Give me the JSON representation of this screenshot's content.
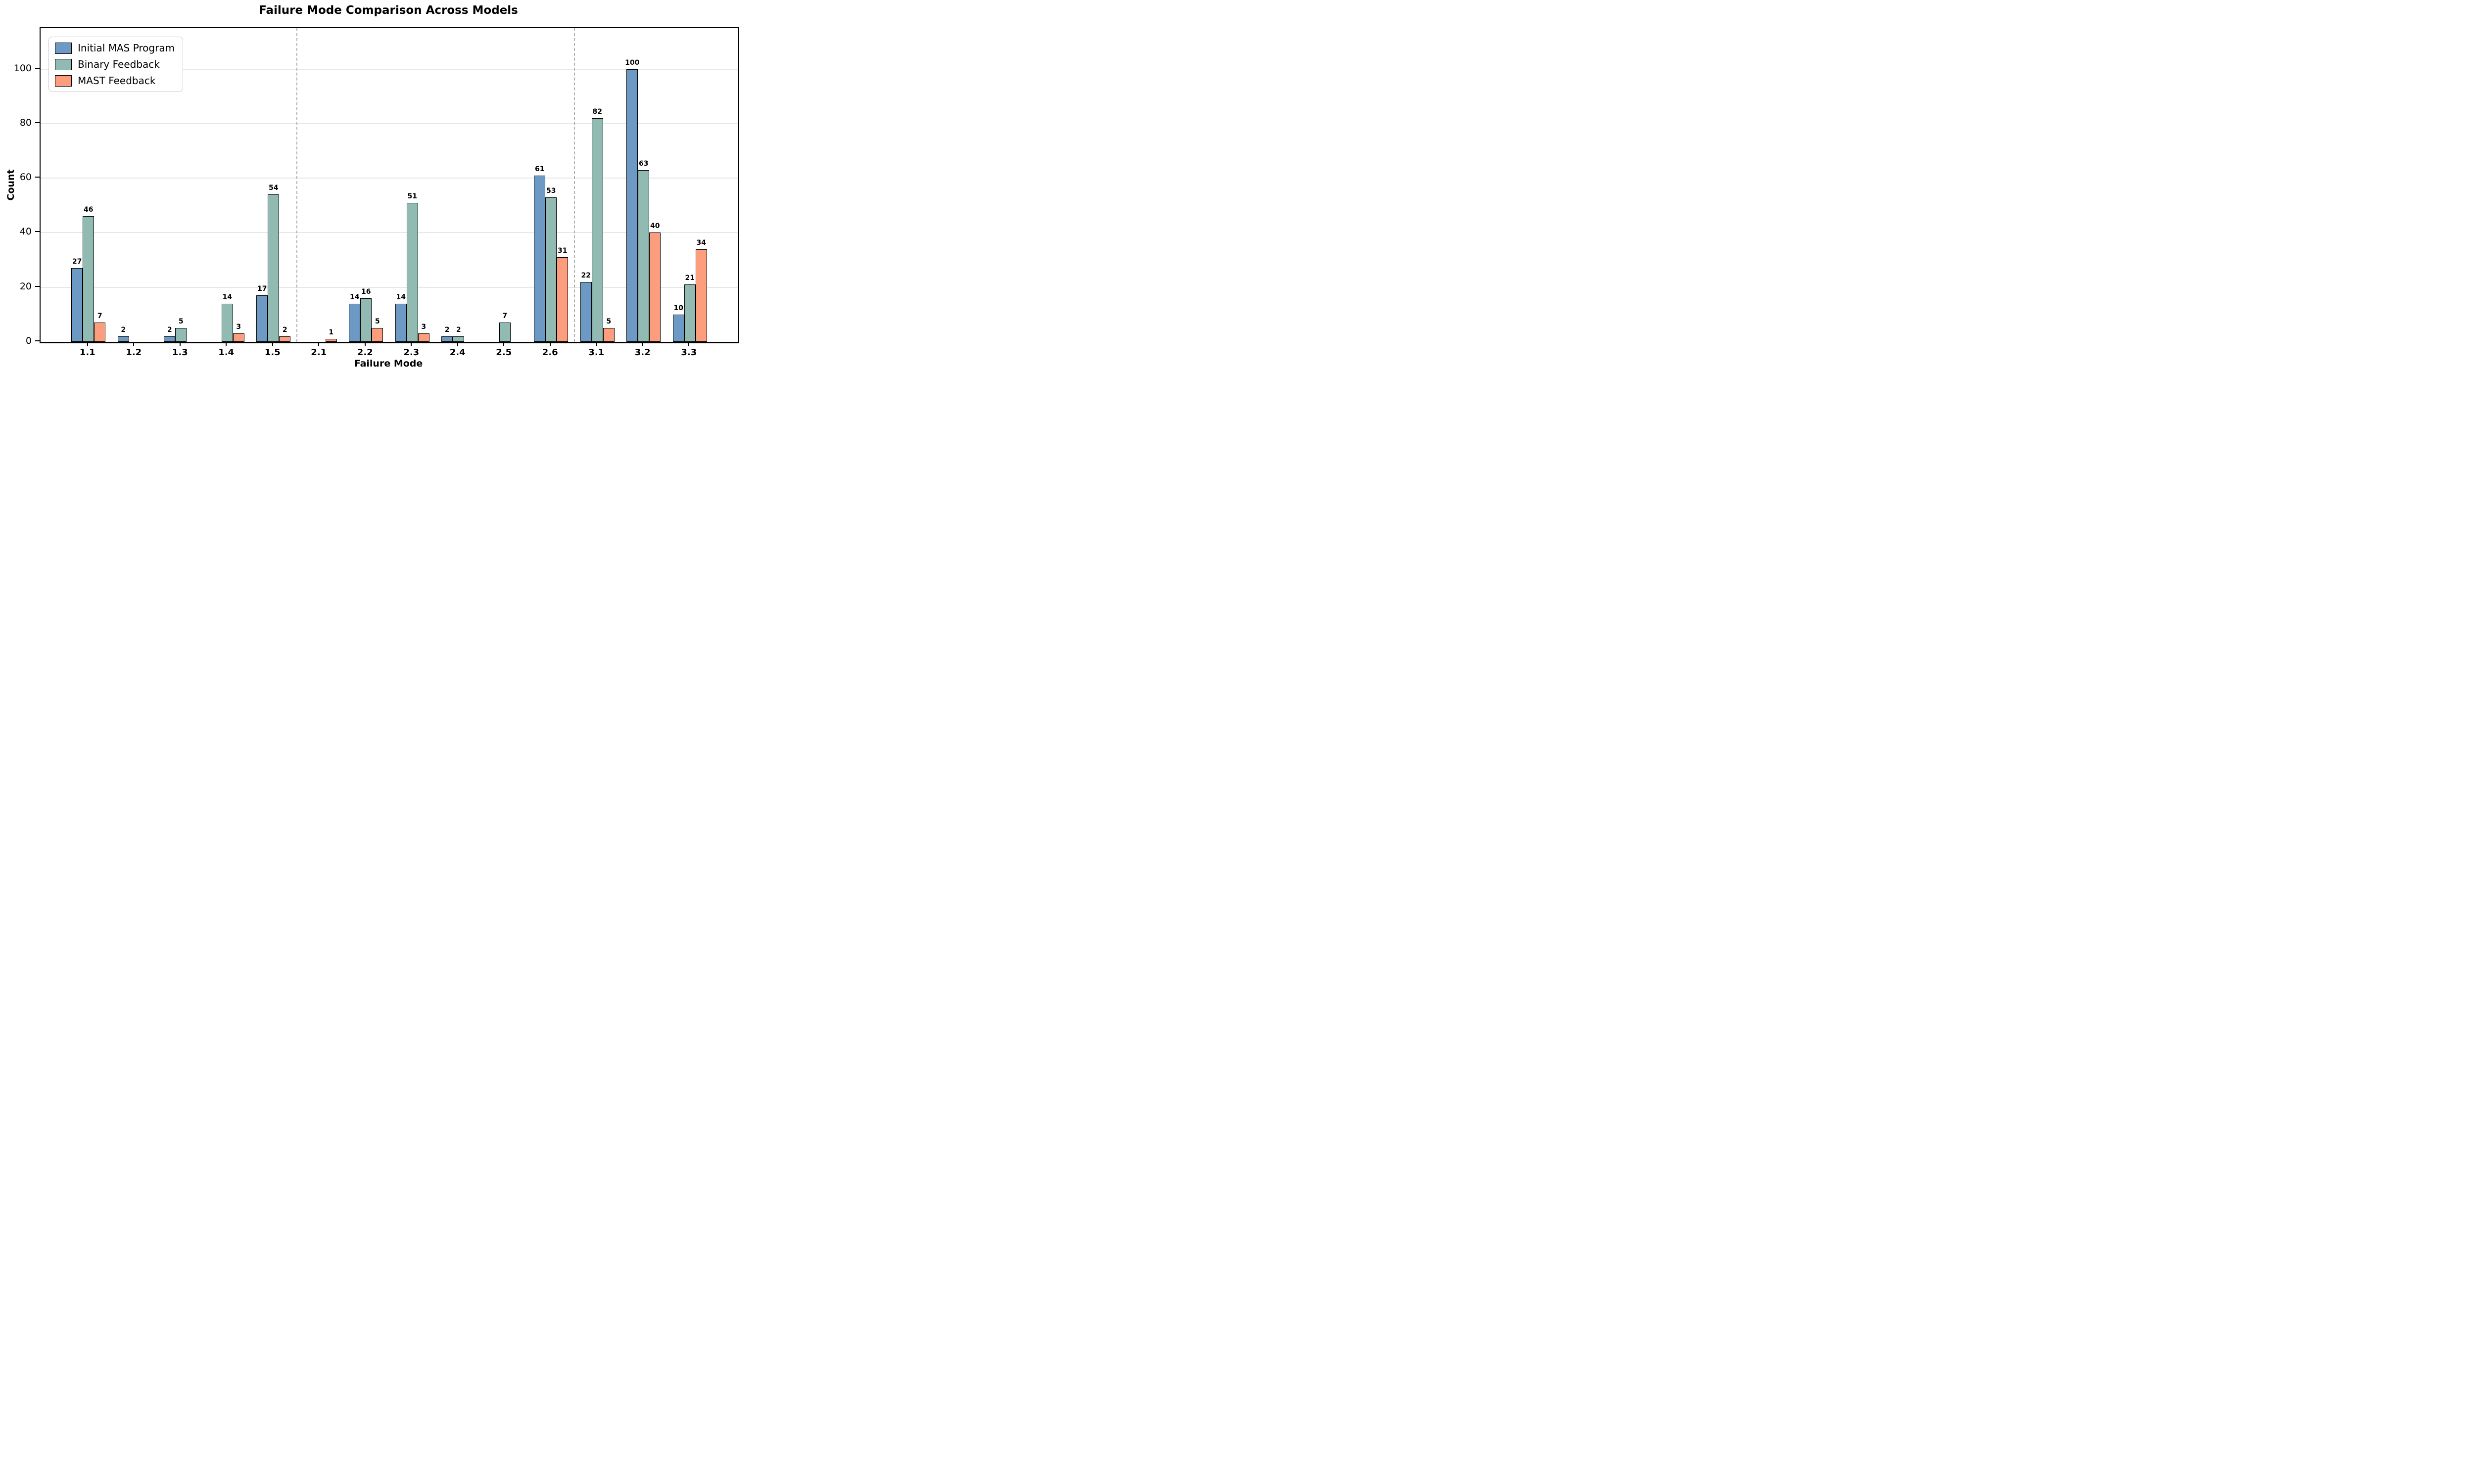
{
  "chart_data": {
    "type": "bar",
    "title": "Failure Mode Comparison Across Models",
    "xlabel": "Failure Mode",
    "ylabel": "Count",
    "categories": [
      "1.1",
      "1.2",
      "1.3",
      "1.4",
      "1.5",
      "2.1",
      "2.2",
      "2.3",
      "2.4",
      "2.5",
      "2.6",
      "3.1",
      "3.2",
      "3.3"
    ],
    "series": [
      {
        "name": "Initial MAS Program",
        "color": "#6C9AC4",
        "values": [
          27,
          2,
          2,
          0,
          17,
          0,
          14,
          14,
          2,
          0,
          61,
          22,
          100,
          10
        ]
      },
      {
        "name": "Binary Feedback",
        "color": "#90BAB2",
        "values": [
          46,
          0,
          5,
          14,
          54,
          0,
          16,
          51,
          2,
          7,
          53,
          82,
          63,
          21
        ]
      },
      {
        "name": "MAST Feedback",
        "color": "#FC9E7D",
        "values": [
          7,
          0,
          0,
          3,
          2,
          1,
          5,
          3,
          0,
          0,
          31,
          5,
          40,
          34
        ]
      }
    ],
    "yticks": [
      0,
      20,
      40,
      60,
      80,
      100
    ],
    "ylim": [
      0,
      115
    ],
    "grid": "horizontal-light",
    "gridline_color": "#e8e8e8",
    "bar_edge_color": "#000000",
    "separator_color": "#b0b0b0",
    "separators_after_categories": [
      "1.5",
      "2.6"
    ],
    "legend_position": "upper-left",
    "value_labels": "nonzero-bars-only"
  }
}
